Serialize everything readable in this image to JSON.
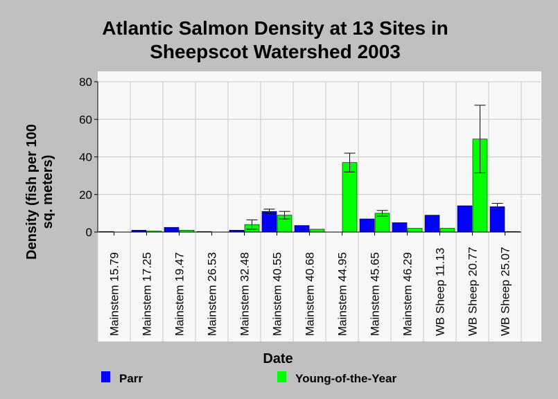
{
  "chart_data": {
    "type": "bar",
    "title_lines": [
      "Atlantic Salmon Density at 13 Sites in",
      "Sheepscot Watershed 2003"
    ],
    "xlabel": "Date",
    "ylabel_lines": [
      "Density (fish per 100",
      "sq. meters)"
    ],
    "ylim": [
      0,
      80
    ],
    "yticks": [
      "0",
      "20",
      "40",
      "60",
      "80"
    ],
    "grid": true,
    "legend_position": "bottom",
    "categories": [
      "Mainstem 15.79",
      "Mainstem 17.25",
      "Mainstem 19.47",
      "Mainstem 26.53",
      "Mainstem 32.48",
      "Mainstem 40.55",
      "Mainstem 40.68",
      "Mainstem 44.95",
      "Mainstem 45.65",
      "Mainstem 46.29",
      "WB Sheep 11.13",
      "WB Sheep 20.77",
      "WB Sheep 25.07"
    ],
    "series": [
      {
        "name": "Parr",
        "color": "#0000ff",
        "values": [
          0.3,
          1.0,
          2.5,
          0.3,
          1.0,
          11.0,
          3.5,
          0,
          7.0,
          5.0,
          9.0,
          14.0,
          13.5
        ],
        "error": [
          null,
          null,
          null,
          null,
          null,
          1.2,
          null,
          null,
          null,
          null,
          null,
          null,
          1.8
        ]
      },
      {
        "name": "Young-of-the-Year",
        "color": "#00ff00",
        "values": [
          0,
          0.5,
          1.0,
          0,
          4.0,
          9.0,
          1.5,
          37.0,
          10.0,
          2.0,
          2.0,
          49.5,
          0.3
        ],
        "error": [
          null,
          null,
          null,
          null,
          2.5,
          2.0,
          null,
          5.0,
          1.5,
          null,
          null,
          18.0,
          null
        ]
      }
    ]
  }
}
